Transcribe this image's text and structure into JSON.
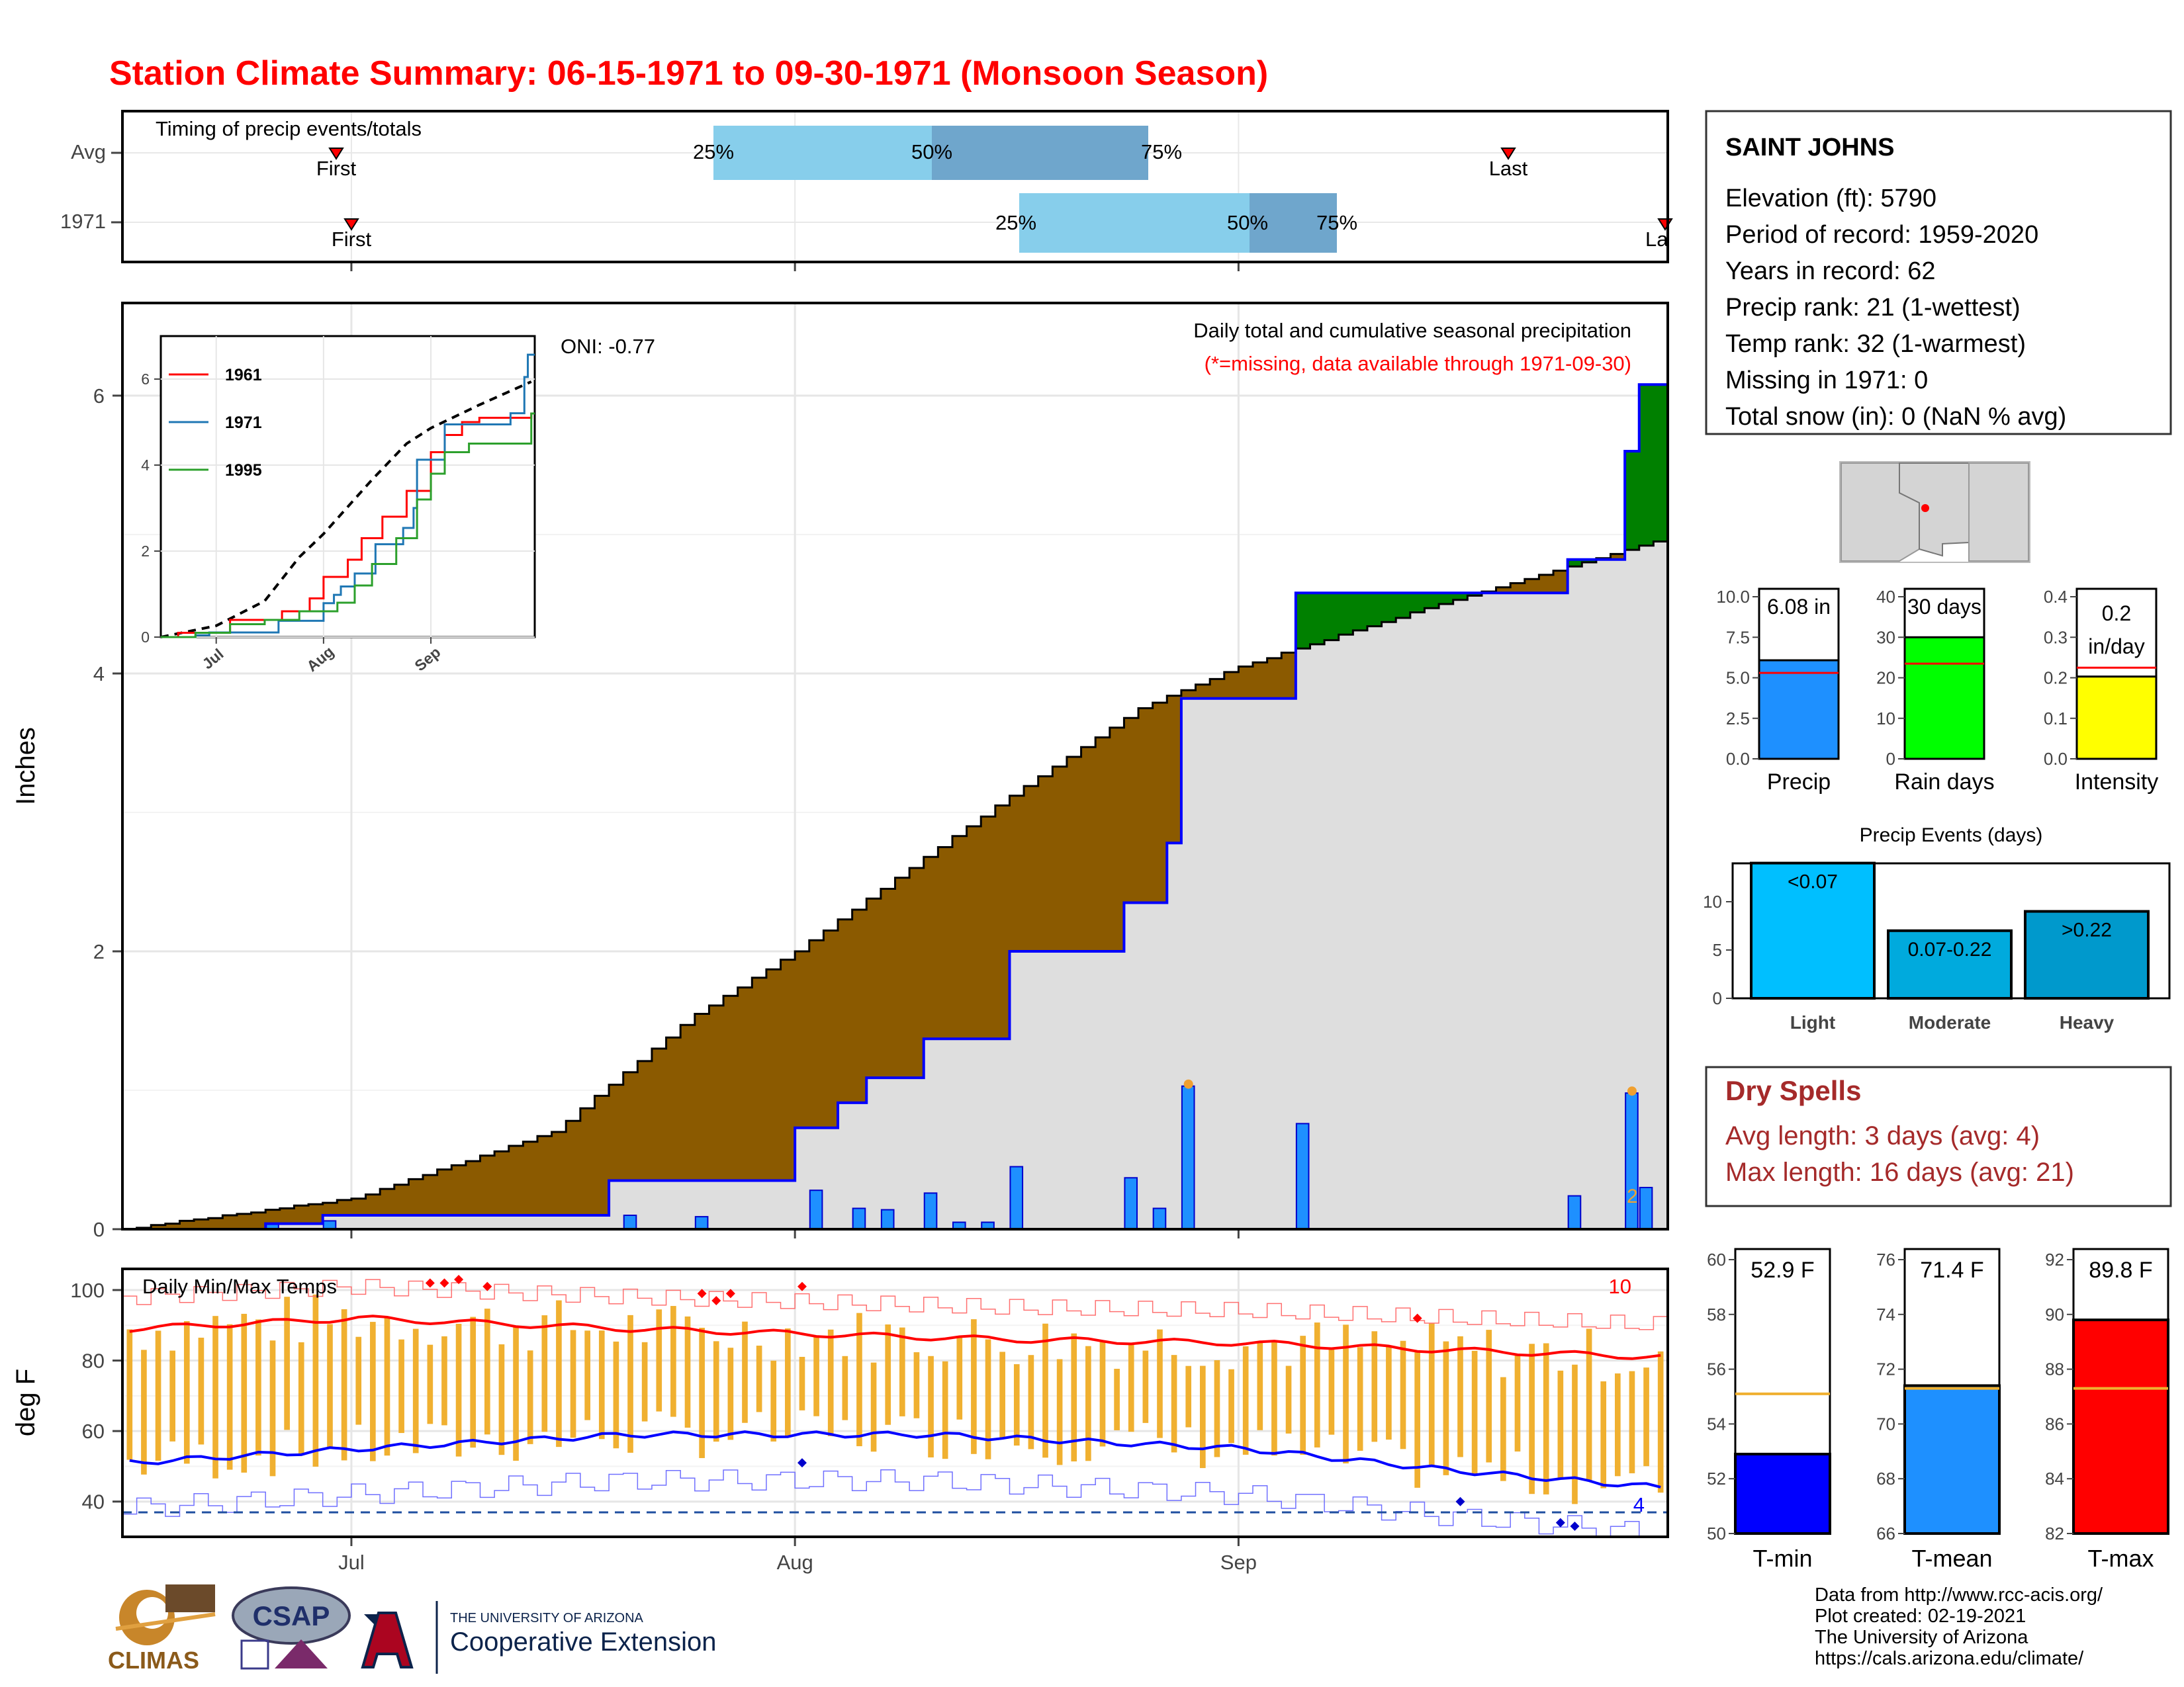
{
  "title": "Station Climate Summary: 06-15-1971 to 09-30-1971 (Monsoon Season)",
  "colors": {
    "title": "#ff0000",
    "dry_spells": "#a52a2a",
    "q_light": "#87ceeb",
    "q_dark": "#6fa6cc",
    "cum_fill_above_avg": "#008000",
    "cum_fill_below_avg": "#8b5a00",
    "cum_base": "#dedede",
    "daily_bar": "#1e90ff",
    "temp_bar": "#f0b030",
    "tmax_line": "#ff0000",
    "tmin_line": "#0000ff",
    "precip_bar": "#1e90ff",
    "raindays_bar": "#00ff00",
    "intensity_bar": "#ffff00",
    "light_bar": "#00bfff",
    "moderate_bar": "#00aadd",
    "heavy_bar": "#0099cc",
    "tmin_bar": "#0000ff",
    "tmean_bar": "#1e90ff",
    "tmax_bar": "#ff0000",
    "avg_line": "#f0b030"
  },
  "timing": {
    "label": "Timing of precip events/totals",
    "rows": [
      {
        "name": "Avg",
        "first": "First",
        "last": "Last",
        "q25": "25%",
        "q50": "50%",
        "q75": "75%"
      },
      {
        "name": "1971",
        "first": "First",
        "last": "La",
        "q25": "25%",
        "q50": "50%",
        "q75": "75%"
      }
    ]
  },
  "station": {
    "name": "SAINT JOHNS",
    "lines": [
      "Elevation (ft): 5790",
      "Period of record: 1959-2020",
      "Years in record: 62",
      "Precip rank: 21 (1-wettest)",
      "Temp rank: 32 (1-warmest)",
      "Missing in 1971: 0",
      "Total snow (in): 0 (NaN % avg)"
    ]
  },
  "precip_chart": {
    "title": "Daily total and cumulative seasonal precipitation",
    "subtitle": "(*=missing, data available through 1971-09-30)",
    "oni": "ONI: -0.77",
    "ylabel": "Inches",
    "yticks": [
      "0",
      "2",
      "4",
      "6"
    ],
    "xticks": [
      "Jul",
      "Aug",
      "Sep"
    ],
    "marker": "2"
  },
  "inset": {
    "legend": [
      "1961",
      "1971",
      "1995"
    ],
    "yticks": [
      "0",
      "2",
      "4",
      "6"
    ],
    "xticks": [
      "Jul",
      "Aug",
      "Sep"
    ]
  },
  "temp_chart": {
    "title": "Daily Min/Max Temps",
    "ylabel": "deg F",
    "yticks": [
      "40",
      "60",
      "80",
      "100"
    ],
    "xticks": [
      "Jul",
      "Aug",
      "Sep"
    ],
    "count_high": "10",
    "count_low": "4"
  },
  "summary_bars": {
    "precip": {
      "label": "Precip",
      "value": 6.08,
      "text": "6.08 in",
      "avg": 5.3,
      "yticks": [
        "0.0",
        "2.5",
        "5.0",
        "7.5",
        "10.0"
      ]
    },
    "raindays": {
      "label": "Rain days",
      "value": 30,
      "text": "30 days",
      "avg": 23.5,
      "yticks": [
        "0",
        "10",
        "20",
        "30",
        "40"
      ]
    },
    "intensity": {
      "label": "Intensity",
      "value": 0.203,
      "text1": "0.2",
      "text2": "in/day",
      "avg": 0.225,
      "yticks": [
        "0.0",
        "0.1",
        "0.2",
        "0.3",
        "0.4"
      ]
    }
  },
  "events": {
    "title": "Precip Events (days)",
    "categories": [
      "Light",
      "Moderate",
      "Heavy"
    ],
    "bar_labels": [
      "<0.07",
      "0.07-0.22",
      ">0.22"
    ],
    "values": [
      14,
      7,
      9
    ],
    "yticks": [
      "0",
      "5",
      "10"
    ]
  },
  "dry_spells": {
    "title": "Dry Spells",
    "avg_line": "Avg length: 3 days (avg: 4)",
    "max_line": "Max length: 16 days (avg: 21)"
  },
  "temp_summary": {
    "tmin": {
      "label": "T-min",
      "value": 52.9,
      "text": "52.9 F",
      "avg": 55.1,
      "ylim": [
        50,
        60
      ],
      "yticks": [
        "50",
        "52",
        "54",
        "56",
        "58",
        "60"
      ]
    },
    "tmean": {
      "label": "T-mean",
      "value": 71.4,
      "text": "71.4 F",
      "avg": 71.3,
      "ylim": [
        66,
        76
      ],
      "yticks": [
        "66",
        "68",
        "70",
        "72",
        "74",
        "76"
      ]
    },
    "tmax": {
      "label": "T-max",
      "value": 89.8,
      "text": "89.8 F",
      "avg": 87.3,
      "ylim": [
        82,
        92
      ],
      "yticks": [
        "82",
        "84",
        "86",
        "88",
        "90",
        "92"
      ]
    }
  },
  "footer": {
    "lines": [
      "Data from http://www.rcc-acis.org/",
      "Plot created: 02-19-2021",
      "The University of Arizona",
      "https://cals.arizona.edu/climate/"
    ],
    "logos": {
      "climas": "CLIMAS",
      "csap": "CSAP",
      "ua_small": "THE UNIVERSITY OF ARIZONA",
      "ua_big": "Cooperative Extension"
    }
  },
  "chart_data": [
    {
      "type": "line",
      "title": "Daily total and cumulative seasonal precipitation",
      "ylabel": "Inches",
      "ylim": [
        0,
        6.6
      ],
      "x_range": [
        "1971-06-15",
        "1971-09-30"
      ],
      "daily_precip_1971": [
        {
          "date": "06-25",
          "value": 0.04
        },
        {
          "date": "06-29",
          "value": 0.06
        },
        {
          "date": "07-20",
          "value": 0.1
        },
        {
          "date": "07-25",
          "value": 0.09
        },
        {
          "date": "08-02",
          "value": 0.28
        },
        {
          "date": "08-05",
          "value": 0.15
        },
        {
          "date": "08-07",
          "value": 0.14
        },
        {
          "date": "08-10",
          "value": 0.26
        },
        {
          "date": "08-12",
          "value": 0.05
        },
        {
          "date": "08-14",
          "value": 0.05
        },
        {
          "date": "08-16",
          "value": 0.45
        },
        {
          "date": "08-24",
          "value": 0.37
        },
        {
          "date": "08-26",
          "value": 0.15
        },
        {
          "date": "08-28",
          "value": 1.03
        },
        {
          "date": "09-05",
          "value": 0.76
        },
        {
          "date": "09-24",
          "value": 0.24
        },
        {
          "date": "09-28",
          "value": 0.98
        },
        {
          "date": "09-29",
          "value": 0.3
        }
      ],
      "cumulative_1971": [
        {
          "date": "06-15",
          "value": 0.0
        },
        {
          "date": "06-25",
          "value": 0.04
        },
        {
          "date": "06-29",
          "value": 0.1
        },
        {
          "date": "07-19",
          "value": 0.35
        },
        {
          "date": "08-01",
          "value": 0.73
        },
        {
          "date": "08-04",
          "value": 0.91
        },
        {
          "date": "08-06",
          "value": 1.09
        },
        {
          "date": "08-10",
          "value": 1.37
        },
        {
          "date": "08-16",
          "value": 2.0
        },
        {
          "date": "08-24",
          "value": 2.35
        },
        {
          "date": "08-27",
          "value": 2.78
        },
        {
          "date": "08-28",
          "value": 3.82
        },
        {
          "date": "09-05",
          "value": 4.58
        },
        {
          "date": "09-24",
          "value": 4.82
        },
        {
          "date": "09-28",
          "value": 5.6
        },
        {
          "date": "09-29",
          "value": 6.08
        }
      ],
      "cumulative_avg": [
        {
          "date": "06-15",
          "value": 0.0
        },
        {
          "date": "07-01",
          "value": 0.22
        },
        {
          "date": "07-15",
          "value": 0.7
        },
        {
          "date": "07-25",
          "value": 1.55
        },
        {
          "date": "08-01",
          "value": 2.0
        },
        {
          "date": "08-15",
          "value": 3.05
        },
        {
          "date": "08-25",
          "value": 3.75
        },
        {
          "date": "09-01",
          "value": 4.05
        },
        {
          "date": "09-15",
          "value": 4.5
        },
        {
          "date": "09-30",
          "value": 4.95
        }
      ]
    },
    {
      "type": "bar",
      "title": "Daily Min/Max Temps",
      "ylabel": "deg F",
      "ylim": [
        30,
        106
      ],
      "x_range": [
        "1971-06-15",
        "1971-09-30"
      ],
      "avg_tmax": [
        {
          "date": "06-15",
          "value": 89
        },
        {
          "date": "07-01",
          "value": 92
        },
        {
          "date": "07-20",
          "value": 89
        },
        {
          "date": "08-15",
          "value": 86
        },
        {
          "date": "09-01",
          "value": 85
        },
        {
          "date": "09-15",
          "value": 83
        },
        {
          "date": "09-30",
          "value": 81
        }
      ],
      "avg_tmin": [
        {
          "date": "06-15",
          "value": 51
        },
        {
          "date": "07-01",
          "value": 55
        },
        {
          "date": "07-20",
          "value": 59
        },
        {
          "date": "08-10",
          "value": 59
        },
        {
          "date": "09-01",
          "value": 55
        },
        {
          "date": "09-15",
          "value": 49
        },
        {
          "date": "09-30",
          "value": 44
        }
      ]
    },
    {
      "type": "bar",
      "title": "Precip Events (days)",
      "categories": [
        "Light",
        "Moderate",
        "Heavy"
      ],
      "values": [
        14,
        7,
        9
      ]
    }
  ]
}
